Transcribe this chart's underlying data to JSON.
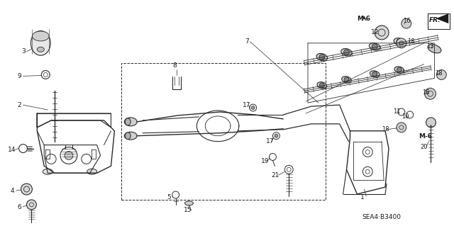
{
  "background_color": "#ffffff",
  "line_color": "#2a2a2a",
  "text_color": "#1a1a1a",
  "fig_width": 6.4,
  "fig_height": 3.19,
  "dpi": 100,
  "diagram_code": "SEA4·B3400"
}
